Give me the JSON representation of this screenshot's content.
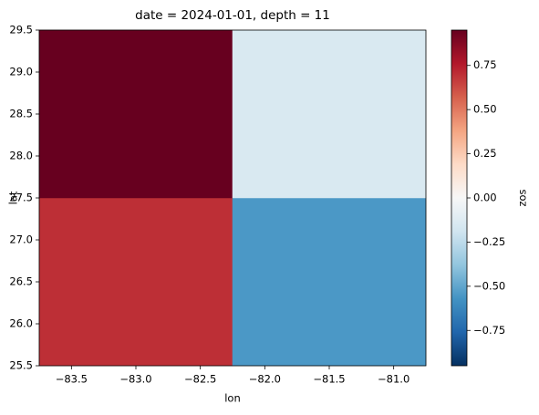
{
  "chart_data": {
    "type": "heatmap",
    "title": "date = 2024-01-01, depth = 11",
    "x_label": "lon",
    "y_label": "lat",
    "colorbar_label": "zos",
    "x": [
      -83,
      -81.5
    ],
    "y": [
      26.5,
      28.5
    ],
    "values": [
      [
        0.7,
        -0.55
      ],
      [
        0.95,
        -0.15
      ]
    ],
    "cmap": "RdBu_r",
    "xlim": [
      -83.75,
      -80.75
    ],
    "ylim": [
      25.5,
      29.5
    ],
    "clim": [
      -0.95,
      0.95
    ],
    "xticks": [
      {
        "value": -83.5,
        "label": "−83.5"
      },
      {
        "value": -83,
        "label": "−83.0"
      },
      {
        "value": -82.5,
        "label": "−82.5"
      },
      {
        "value": -82,
        "label": "−82.0"
      },
      {
        "value": -81.5,
        "label": "−81.5"
      },
      {
        "value": -81,
        "label": "−81.0"
      }
    ],
    "yticks": [
      {
        "value": 25.5,
        "label": "25.5"
      },
      {
        "value": 26,
        "label": "26.0"
      },
      26.5,
      {
        "value": 27,
        "label": "27.0"
      },
      27.5,
      {
        "value": 28,
        "label": "28.0"
      },
      28.5,
      {
        "value": 29,
        "label": "29.0"
      },
      29.5
    ],
    "cticks": [
      {
        "value": -0.75,
        "label": "−0.75"
      },
      {
        "value": -0.5,
        "label": "−0.50"
      },
      {
        "value": -0.25,
        "label": "−0.25"
      },
      {
        "value": 0,
        "label": "0.00"
      },
      0.25,
      {
        "value": 0.5,
        "label": "0.50"
      },
      0.75
    ]
  }
}
